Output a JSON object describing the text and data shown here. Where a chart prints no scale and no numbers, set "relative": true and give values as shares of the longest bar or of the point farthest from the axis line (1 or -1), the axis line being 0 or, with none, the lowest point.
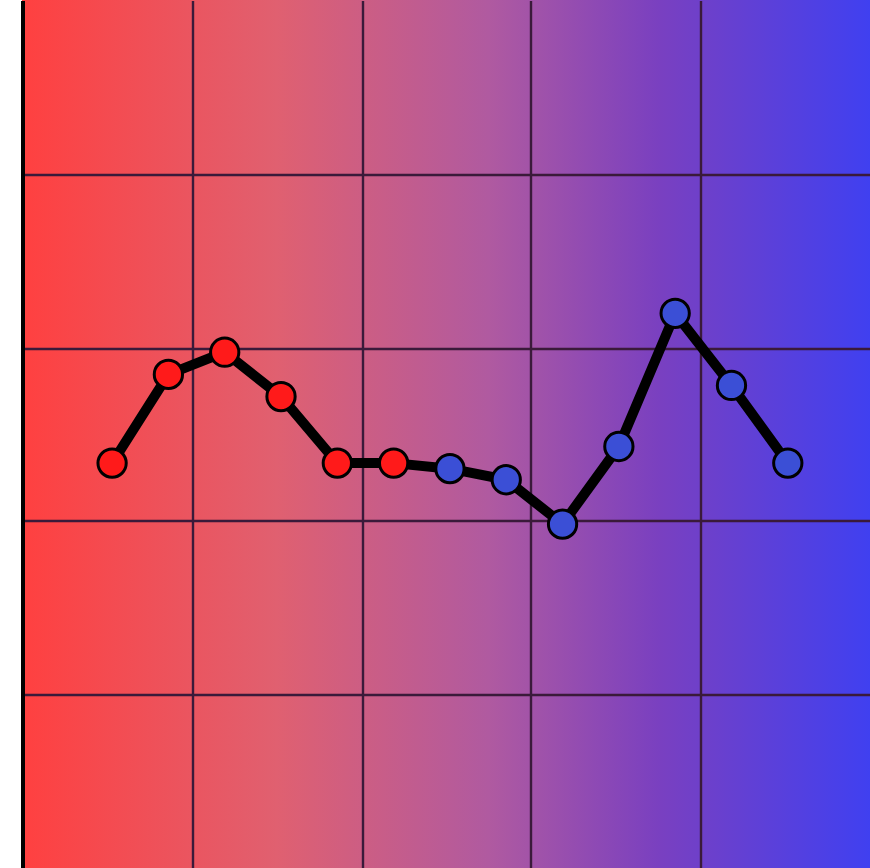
{
  "chart_data": {
    "type": "line",
    "relative": true,
    "grid": true,
    "marker": "circle",
    "line_style": "solid",
    "tick_labels": false,
    "categories": [
      null,
      null,
      null,
      null,
      null,
      null,
      null,
      null,
      null,
      null,
      null,
      null,
      null
    ],
    "series": [
      {
        "color": "#000000",
        "colors": [
          "#ff1a1a",
          "#ff1a1a",
          "#ff1a1a",
          "#ff1a1a",
          "#ff1a1a",
          "#ff1a1a",
          "#3b4fd6",
          "#3b4fd6",
          "#3b4fd6",
          "#3b4fd6",
          "#3b4fd6",
          "#3b4fd6",
          "#3b4fd6"
        ],
        "values": [
          0.73,
          0.89,
          0.93,
          0.85,
          0.73,
          0.73,
          0.72,
          0.7,
          0.62,
          0.76,
          1,
          0.87,
          0.73
        ]
      }
    ]
  }
}
